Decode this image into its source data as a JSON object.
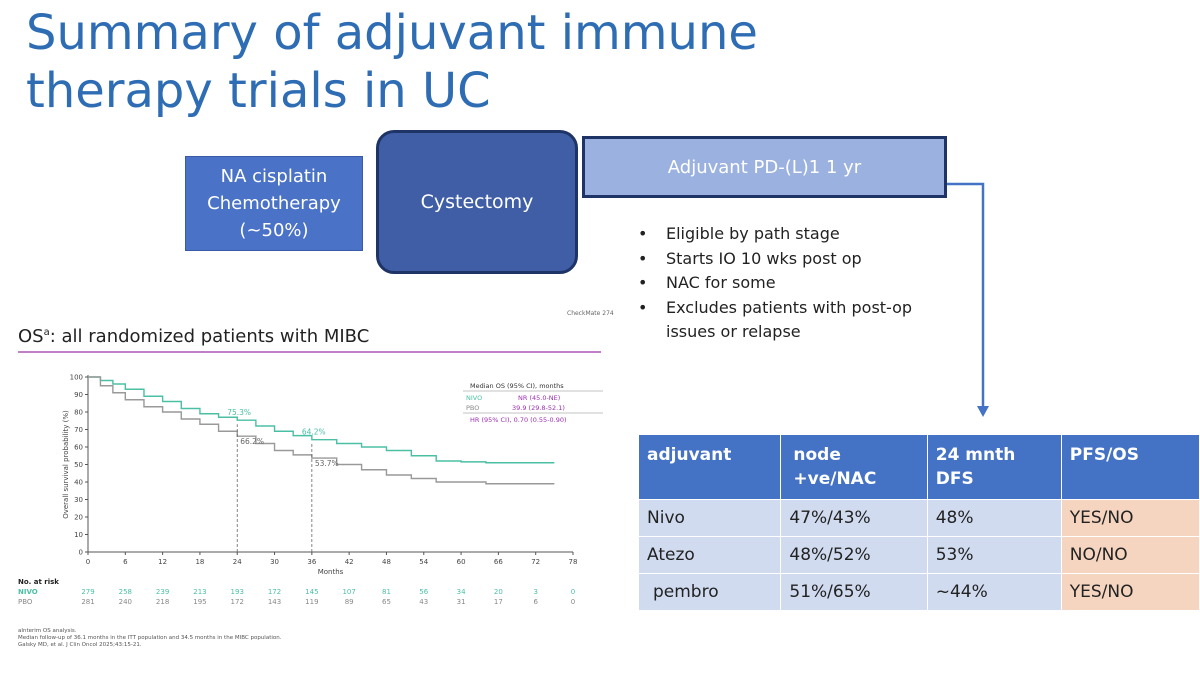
{
  "slide": {
    "title": "Summary of adjuvant immune therapy trials in UC",
    "flow": {
      "box1": "NA cisplatin Chemotherapy (~50%)",
      "box2": "Cystectomy",
      "box3": "Adjuvant PD-(L)1 1 yr"
    },
    "bullets": [
      "Eligible by path stage",
      "Starts IO 10 wks post op",
      "NAC for some",
      "Excludes patients with post-op issues or relapse"
    ],
    "note": "CheckMate 274",
    "os_title": "OS",
    "os_title_sup": "a",
    "os_title_rest": ": all randomized patients with MIBC",
    "footnotes": [
      "aInterim OS analysis.",
      "Median follow-up of 36.1 months in the ITT population and 34.5 months in the MIBC population.",
      "Galsky MD, et al. J Clin Oncol 2025;43:15-21."
    ]
  },
  "table": {
    "headers": [
      "adjuvant",
      "node +ve/NAC",
      "24 mnth DFS",
      "PFS/OS"
    ],
    "rows": [
      [
        "Nivo",
        "47%/43%",
        "48%",
        "YES/NO"
      ],
      [
        "Atezo",
        "48%/52%",
        "53%",
        "NO/NO"
      ],
      [
        "pembro",
        "51%/65%",
        "~44%",
        "YES/NO"
      ]
    ]
  },
  "chart_data": {
    "type": "line",
    "title": "",
    "xlabel": "Months",
    "ylabel": "Overall survival probability (%)",
    "xlim": [
      0,
      78
    ],
    "ylim": [
      0,
      100
    ],
    "xticks": [
      0,
      6,
      12,
      18,
      24,
      30,
      36,
      42,
      48,
      54,
      60,
      66,
      72,
      78
    ],
    "yticks": [
      0,
      10,
      20,
      30,
      40,
      50,
      60,
      70,
      80,
      90,
      100
    ],
    "colors": {
      "nivo": "#4bbfa5",
      "pbo": "#999999",
      "hr": "#9b30b0"
    },
    "series": [
      {
        "name": "NIVO",
        "x": [
          0,
          2,
          4,
          6,
          9,
          12,
          15,
          18,
          21,
          24,
          27,
          30,
          33,
          36,
          40,
          44,
          48,
          52,
          56,
          60,
          64,
          68,
          72,
          75
        ],
        "values": [
          100,
          98,
          96,
          93,
          89,
          86,
          82,
          79,
          77,
          75.3,
          72,
          69,
          66.5,
          64.2,
          62,
          60,
          58,
          55,
          52,
          51.5,
          51,
          51,
          51,
          51
        ]
      },
      {
        "name": "PBO",
        "x": [
          0,
          2,
          4,
          6,
          9,
          12,
          15,
          18,
          21,
          24,
          27,
          30,
          33,
          36,
          40,
          44,
          48,
          52,
          56,
          60,
          64,
          68,
          72,
          75
        ],
        "values": [
          100,
          95,
          91,
          87,
          83,
          80,
          76,
          73,
          69,
          66.2,
          62,
          58,
          55.5,
          53.7,
          50,
          47,
          44,
          42,
          40,
          40,
          39,
          39,
          39,
          39
        ]
      }
    ],
    "annotations": [
      {
        "label": "75.3%",
        "x": 24,
        "y": 75.3,
        "series": "NIVO"
      },
      {
        "label": "66.2%",
        "x": 24,
        "y": 66.2,
        "series": "PBO"
      },
      {
        "label": "64.2%",
        "x": 36,
        "y": 64.2,
        "series": "NIVO"
      },
      {
        "label": "53.7%",
        "x": 36,
        "y": 53.7,
        "series": "PBO"
      }
    ],
    "legend": {
      "header": "Median OS (95% CI), months",
      "rows": [
        {
          "label": "NIVO",
          "value": "NR (45.0-NE)"
        },
        {
          "label": "PBO",
          "value": "39.9 (29.8-52.1)"
        },
        {
          "label": "HR (95% CI), 0.70 (0.55-0.90)",
          "value": ""
        }
      ]
    },
    "at_risk": {
      "header": "No. at risk",
      "rows": [
        {
          "label": "NIVO",
          "values": [
            279,
            258,
            239,
            213,
            193,
            172,
            145,
            107,
            81,
            56,
            34,
            20,
            3,
            0
          ]
        },
        {
          "label": "PBO",
          "values": [
            281,
            240,
            218,
            195,
            172,
            143,
            119,
            89,
            65,
            43,
            31,
            17,
            6,
            0
          ]
        }
      ]
    }
  }
}
